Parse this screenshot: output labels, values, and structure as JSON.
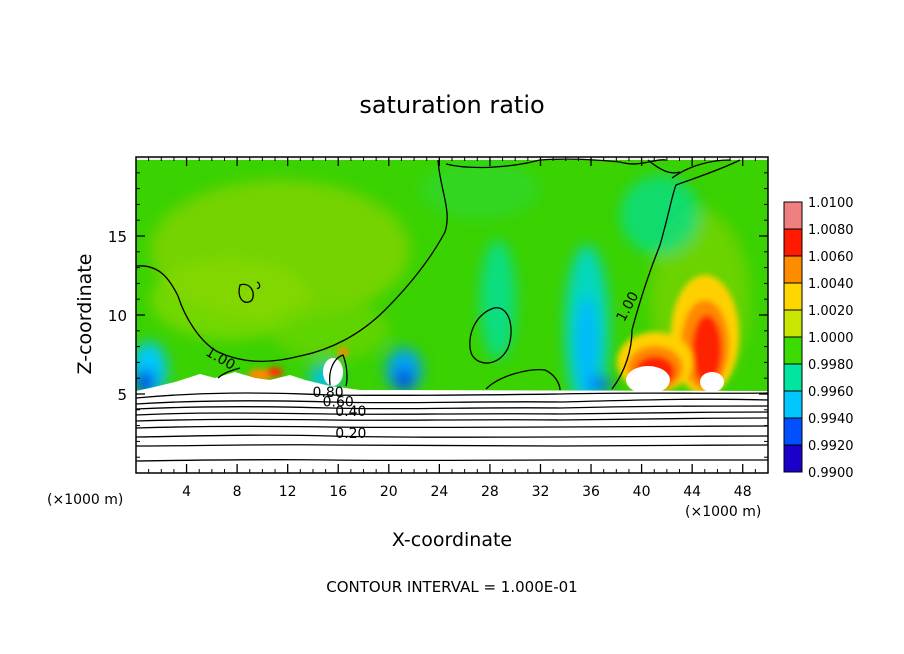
{
  "chart_data": {
    "type": "heatmap",
    "title": "saturation ratio",
    "xlabel": "X-coordinate",
    "ylabel": "Z-coordinate",
    "x_unit_label": "(×1000 m)",
    "footer": "CONTOUR INTERVAL = 1.000E-01",
    "xlim": [
      0,
      50
    ],
    "ylim": [
      0,
      20
    ],
    "x_ticks": [
      4,
      8,
      12,
      16,
      20,
      24,
      28,
      32,
      36,
      40,
      44,
      48
    ],
    "y_ticks": [
      5,
      10,
      15
    ],
    "colorbar": {
      "levels": [
        "1.0100",
        "1.0080",
        "1.0060",
        "1.0040",
        "1.0020",
        "1.0000",
        "0.9980",
        "0.9960",
        "0.9940",
        "0.9920",
        "0.9900"
      ],
      "colors": [
        "#f08080",
        "#ff1a00",
        "#ff8c00",
        "#ffd700",
        "#c8e600",
        "#3cdc00",
        "#00e6a0",
        "#00c8ff",
        "#0050ff",
        "#1a00c8",
        "#8c00c8"
      ]
    },
    "contour_labels": [
      {
        "text": "1.00",
        "x": 6.5,
        "z": 7.0,
        "angle": 30
      },
      {
        "text": "1.00",
        "x": 39.2,
        "z": 10.4,
        "angle": -62
      },
      {
        "text": "0.80",
        "x": 15.2,
        "z": 4.8,
        "angle": 0
      },
      {
        "text": "0.60",
        "x": 16.0,
        "z": 4.2,
        "angle": 0
      },
      {
        "text": "0.40",
        "x": 17.0,
        "z": 3.6,
        "angle": 0
      },
      {
        "text": "0.20",
        "x": 17.0,
        "z": 2.2,
        "angle": 0
      }
    ]
  }
}
